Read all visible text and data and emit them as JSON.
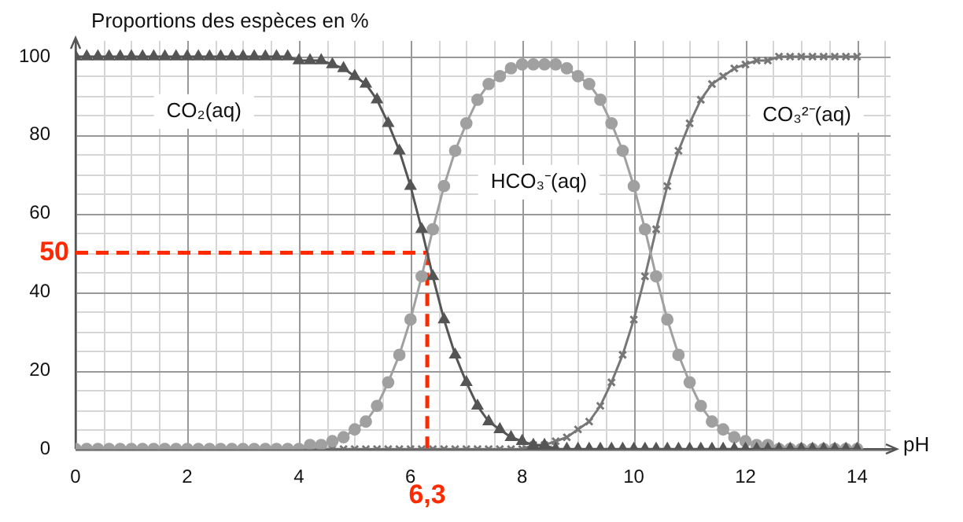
{
  "chart_data": {
    "type": "line",
    "ylabel": "Proportions des espèces en %",
    "xlabel": "pH",
    "x": [
      0,
      0.2,
      0.4,
      0.6,
      0.8,
      1,
      1.2,
      1.4,
      1.6,
      1.8,
      2,
      2.2,
      2.4,
      2.6,
      2.8,
      3,
      3.2,
      3.4,
      3.6,
      3.8,
      4,
      4.2,
      4.4,
      4.6,
      4.8,
      5,
      5.2,
      5.4,
      5.6,
      5.8,
      6,
      6.2,
      6.4,
      6.6,
      6.8,
      7,
      7.2,
      7.4,
      7.6,
      7.8,
      8,
      8.2,
      8.4,
      8.6,
      8.8,
      9,
      9.2,
      9.4,
      9.6,
      9.8,
      10,
      10.2,
      10.4,
      10.6,
      10.8,
      11,
      11.2,
      11.4,
      11.6,
      11.8,
      12,
      12.2,
      12.4,
      12.6,
      12.8,
      13,
      13.2,
      13.4,
      13.6,
      13.8,
      14
    ],
    "series": [
      {
        "name": "CO₂(aq)",
        "color": "#555555",
        "marker": "triangle",
        "values": [
          100,
          100,
          100,
          100,
          100,
          100,
          100,
          100,
          100,
          100,
          100,
          100,
          100,
          100,
          100,
          100,
          100,
          100,
          100,
          100,
          99,
          99,
          99,
          98,
          97,
          95,
          93,
          89,
          83,
          76,
          67,
          56,
          44,
          33,
          24,
          17,
          11,
          7,
          5,
          3,
          2,
          1,
          1,
          0,
          0,
          0,
          0,
          0,
          0,
          0,
          0,
          0,
          0,
          0,
          0,
          0,
          0,
          0,
          0,
          0,
          0,
          0,
          0,
          0,
          0,
          0,
          0,
          0,
          0,
          0,
          0
        ]
      },
      {
        "name": "HCO₃⁻(aq)",
        "color": "#a0a0a0",
        "marker": "circle",
        "values": [
          0,
          0,
          0,
          0,
          0,
          0,
          0,
          0,
          0,
          0,
          0,
          0,
          0,
          0,
          0,
          0,
          0,
          0,
          0,
          0,
          0,
          1,
          1,
          2,
          3,
          5,
          7,
          11,
          17,
          24,
          33,
          44,
          56,
          67,
          76,
          83,
          89,
          93,
          95,
          97,
          98,
          98,
          98,
          98,
          97,
          95,
          93,
          89,
          83,
          76,
          67,
          56,
          44,
          33,
          24,
          17,
          11,
          7,
          5,
          3,
          2,
          1,
          1,
          0,
          0,
          0,
          0,
          0,
          0,
          0,
          0
        ]
      },
      {
        "name": "CO₃²⁻(aq)",
        "color": "#777777",
        "marker": "cross",
        "values": [
          0,
          0,
          0,
          0,
          0,
          0,
          0,
          0,
          0,
          0,
          0,
          0,
          0,
          0,
          0,
          0,
          0,
          0,
          0,
          0,
          0,
          0,
          0,
          0,
          0,
          0,
          0,
          0,
          0,
          0,
          0,
          0,
          0,
          0,
          0,
          0,
          0,
          0,
          0,
          0,
          0,
          1,
          1,
          2,
          3,
          5,
          7,
          11,
          17,
          24,
          33,
          44,
          56,
          67,
          76,
          83,
          89,
          93,
          95,
          97,
          98,
          99,
          99,
          100,
          100,
          100,
          100,
          100,
          100,
          100,
          100
        ]
      }
    ],
    "xlim": [
      0,
      14.6
    ],
    "xticks": [
      0,
      2,
      4,
      6,
      8,
      10,
      12,
      14
    ],
    "ylim": [
      0,
      104
    ],
    "yticks": [
      0,
      20,
      40,
      60,
      80,
      100
    ],
    "grid": true,
    "legend": false,
    "ref_lines": [
      {
        "axis": "y",
        "value": 50,
        "label": "50",
        "color": "#ff2a00",
        "line_style": "dashed"
      },
      {
        "axis": "x",
        "value": 6.3,
        "label": "6,3",
        "color": "#ff2a00",
        "line_style": "dashed"
      }
    ]
  }
}
